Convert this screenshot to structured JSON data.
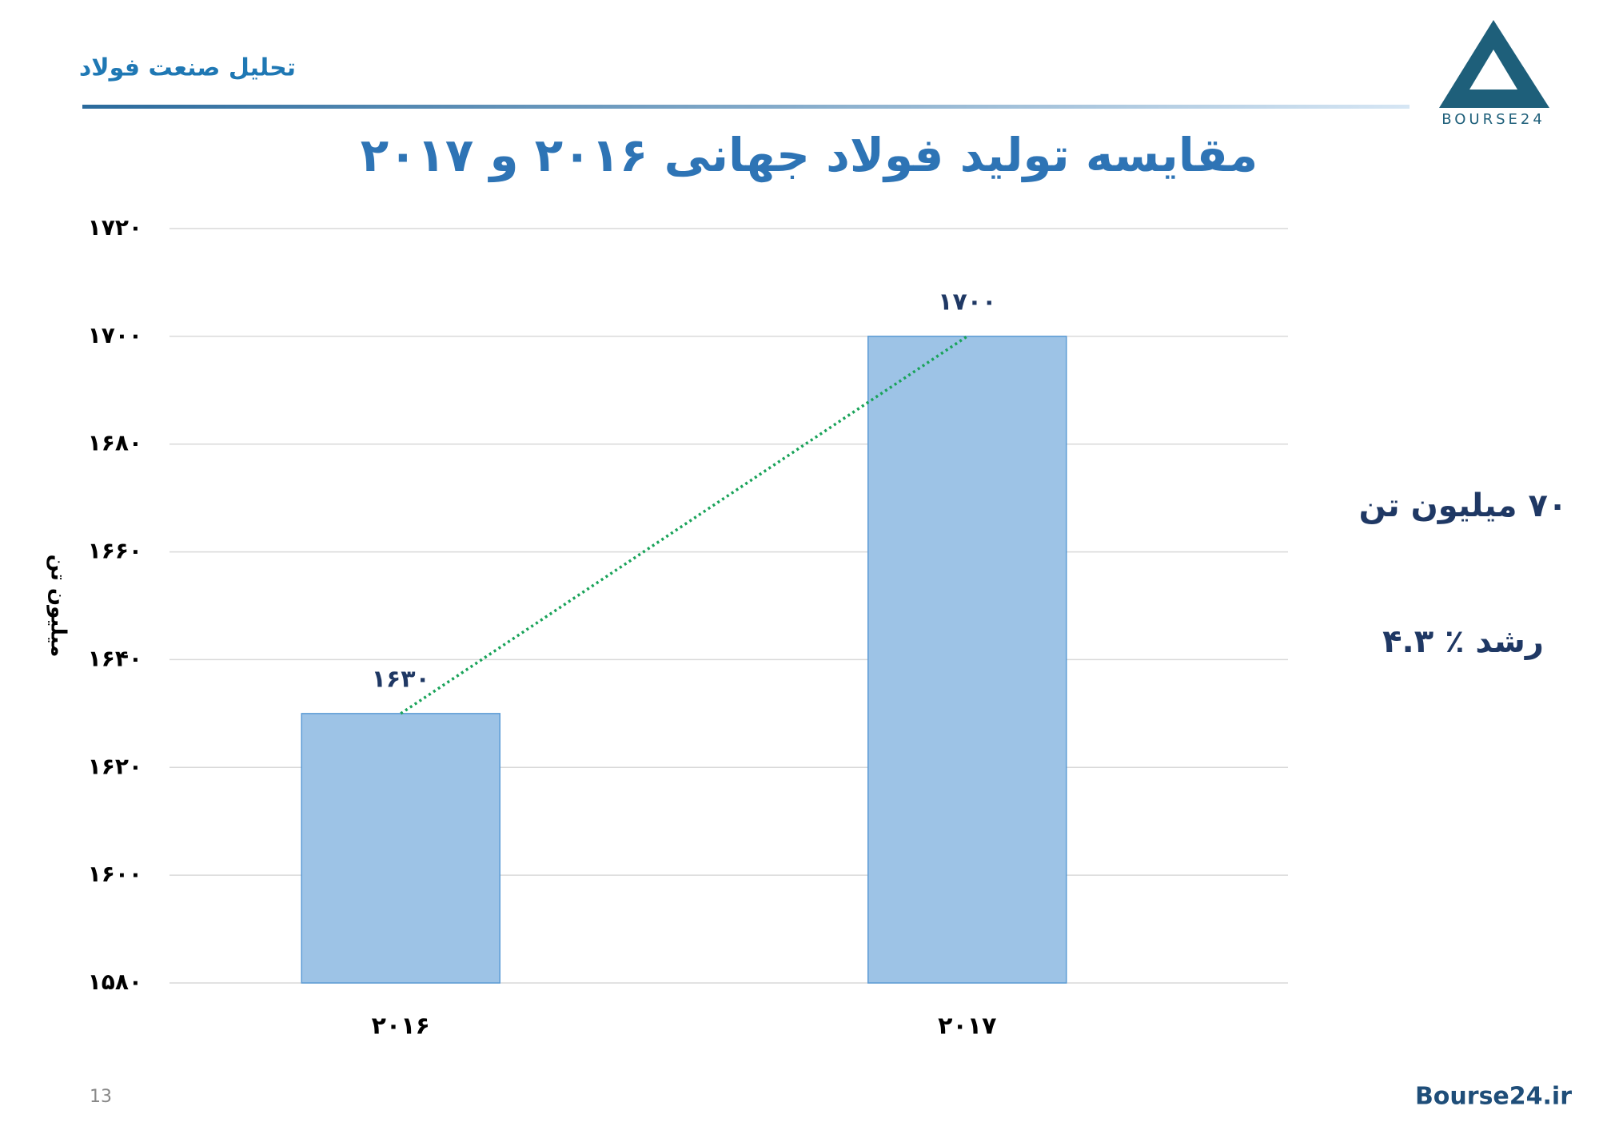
{
  "header": {
    "subtitle": "تحلیل صنعت فولاد",
    "logo_text": "BOURSE24"
  },
  "chart_data": {
    "type": "bar",
    "title": "مقایسه تولید فولاد جهانی ۲۰۱۶ و ۲۰۱۷",
    "y_label": "میلیون تن",
    "categories": [
      "۲۰۱۶",
      "۲۰۱۷"
    ],
    "values": [
      1630,
      1700
    ],
    "value_labels": [
      "۱۶۳۰",
      "۱۷۰۰"
    ],
    "color": "#9dc3e6",
    "trend_color": "#1aa35a",
    "ylim": [
      1580,
      1720
    ],
    "yticks": [
      {
        "value": 1580,
        "label": "۱۵۸۰"
      },
      {
        "value": 1600,
        "label": "۱۶۰۰"
      },
      {
        "value": 1620,
        "label": "۱۶۲۰"
      },
      {
        "value": 1640,
        "label": "۱۶۴۰"
      },
      {
        "value": 1660,
        "label": "۱۶۶۰"
      },
      {
        "value": 1680,
        "label": "۱۶۸۰"
      },
      {
        "value": 1700,
        "label": "۱۷۰۰"
      },
      {
        "value": 1720,
        "label": "۱۷۲۰"
      }
    ],
    "grid": true,
    "annotations": [
      "۷۰ میلیون تن",
      "رشد ٪ ۴.۳"
    ]
  },
  "footer": {
    "page_number": "13",
    "site": "Bourse24.ir"
  }
}
